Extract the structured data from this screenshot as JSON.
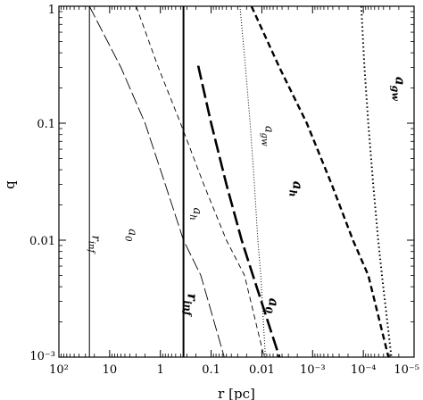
{
  "chart_data": {
    "type": "line",
    "xlabel": "r [pc]",
    "ylabel": "q",
    "x_scale": "log",
    "x_reversed": true,
    "y_scale": "log",
    "xlim": [
      100,
      1e-05
    ],
    "ylim": [
      0.001,
      1
    ],
    "x_ticks": [
      {
        "value": 100,
        "label": "10²"
      },
      {
        "value": 10,
        "label": "10"
      },
      {
        "value": 1,
        "label": "1"
      },
      {
        "value": 0.1,
        "label": "0.1"
      },
      {
        "value": 0.01,
        "label": "0.01"
      },
      {
        "value": 0.001,
        "label": "10⁻³"
      },
      {
        "value": 0.0001,
        "label": "10⁻⁴"
      },
      {
        "value": 1e-05,
        "label": "10⁻⁵"
      }
    ],
    "y_ticks": [
      {
        "value": 1,
        "label": "1"
      },
      {
        "value": 0.1,
        "label": "0.1"
      },
      {
        "value": 0.01,
        "label": "0.01"
      },
      {
        "value": 0.001,
        "label": "10⁻³"
      }
    ],
    "grid": false,
    "legend": "none",
    "series": [
      {
        "style": "thin-solid",
        "points": [
          [
            25,
            0.001
          ],
          [
            25,
            1
          ]
        ]
      },
      {
        "style": "thick-solid",
        "points": [
          [
            0.35,
            0.001
          ],
          [
            0.35,
            1
          ]
        ]
      },
      {
        "style": "thin-long-dash",
        "points": [
          [
            25,
            1
          ],
          [
            6,
            0.3
          ],
          [
            2,
            0.1
          ],
          [
            0.8,
            0.03
          ],
          [
            0.35,
            0.01
          ],
          [
            0.16,
            0.005
          ],
          [
            0.055,
            0.001
          ]
        ]
      },
      {
        "style": "thin-dash",
        "points": [
          [
            3,
            1
          ],
          [
            1.1,
            0.3
          ],
          [
            0.4,
            0.1
          ],
          [
            0.14,
            0.03
          ],
          [
            0.05,
            0.01
          ],
          [
            0.022,
            0.005
          ],
          [
            0.009,
            0.001
          ]
        ]
      },
      {
        "style": "thin-dot",
        "points": [
          [
            0.027,
            1
          ],
          [
            0.021,
            0.3
          ],
          [
            0.017,
            0.1
          ],
          [
            0.014,
            0.03
          ],
          [
            0.012,
            0.01
          ],
          [
            0.0105,
            0.005
          ],
          [
            0.0085,
            0.001
          ]
        ]
      },
      {
        "style": "thick-long-dash",
        "points": [
          [
            0.18,
            0.31
          ],
          [
            0.1,
            0.1
          ],
          [
            0.05,
            0.03
          ],
          [
            0.025,
            0.01
          ],
          [
            0.015,
            0.005
          ],
          [
            0.0045,
            0.001
          ]
        ]
      },
      {
        "style": "thick-dash",
        "points": [
          [
            0.016,
            1
          ],
          [
            0.0045,
            0.3
          ],
          [
            0.0013,
            0.1
          ],
          [
            0.00042,
            0.03
          ],
          [
            0.00016,
            0.01
          ],
          [
            8e-05,
            0.005
          ],
          [
            3.2e-05,
            0.001
          ]
        ]
      },
      {
        "style": "thick-dot",
        "points": [
          [
            0.00011,
            1
          ],
          [
            9.5e-05,
            0.3
          ],
          [
            8e-05,
            0.1
          ],
          [
            6.4e-05,
            0.03
          ],
          [
            5.1e-05,
            0.01
          ],
          [
            4.3e-05,
            0.005
          ],
          [
            2.8e-05,
            0.001
          ]
        ]
      }
    ],
    "annotations": [
      {
        "text": "r",
        "sub": "inf",
        "weight": "normal",
        "at": [
          22,
          0.011
        ]
      },
      {
        "text": "a",
        "sub": "0",
        "weight": "normal",
        "at": [
          4.2,
          0.0125
        ]
      },
      {
        "text": "a",
        "sub": "h",
        "weight": "normal",
        "at": [
          0.22,
          0.019
        ]
      },
      {
        "text": "a",
        "sub": "gw",
        "weight": "normal",
        "at": [
          0.0085,
          0.095
        ]
      },
      {
        "text": "r",
        "sub": "inf",
        "weight": "bold",
        "at": [
          0.29,
          0.0035
        ]
      },
      {
        "text": "a",
        "sub": "h",
        "weight": "bold",
        "at": [
          0.0024,
          0.032
        ]
      },
      {
        "text": "a",
        "sub": "0",
        "weight": "bold",
        "at": [
          0.0072,
          0.0032
        ]
      },
      {
        "text": "a",
        "sub": "gw",
        "weight": "bold",
        "at": [
          2.3e-05,
          0.25
        ]
      }
    ]
  }
}
